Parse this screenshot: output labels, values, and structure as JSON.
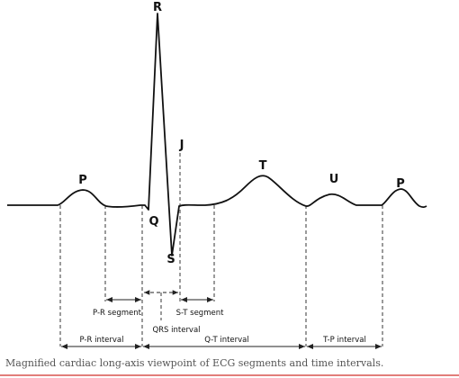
{
  "waves": [
    "P",
    "R",
    "Q",
    "S",
    "J",
    "T",
    "U",
    "P"
  ],
  "segments": [
    "P-R segment",
    "S-T segment",
    "QRS interval"
  ],
  "intervals": [
    "P-R interval",
    "Q-T interval",
    "T-P interval"
  ],
  "caption": "Magnified cardiac long-axis viewpoint of ECG segments and time intervals."
}
